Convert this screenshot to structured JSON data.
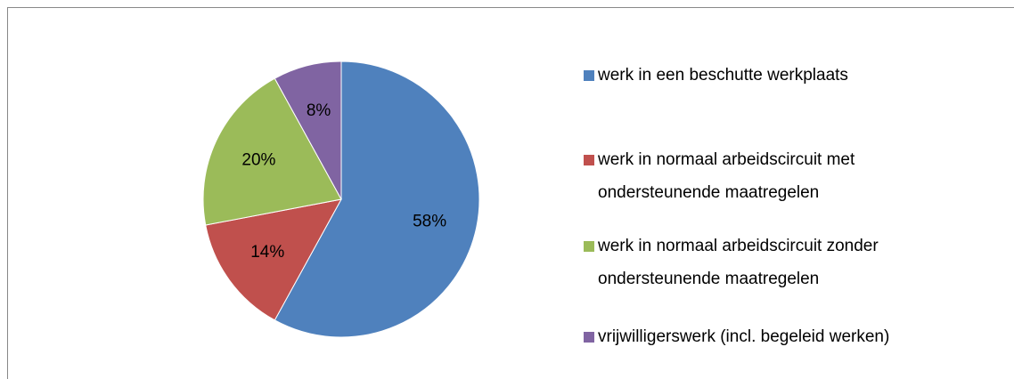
{
  "chart_data": {
    "type": "pie",
    "categories": [
      "werk in een beschutte werkplaats",
      "werk in normaal arbeidscircuit met ondersteunende maatregelen",
      "werk in normaal arbeidscircuit zonder ondersteunende maatregelen",
      "vrijwilligerswerk (incl. begeleid werken)"
    ],
    "values": [
      58,
      14,
      20,
      8
    ],
    "value_labels": [
      "58%",
      "14%",
      "20%",
      "8%"
    ],
    "colors": [
      "#4f81bd",
      "#c0504d",
      "#9bbb59",
      "#8064a2"
    ],
    "legend": "right"
  }
}
